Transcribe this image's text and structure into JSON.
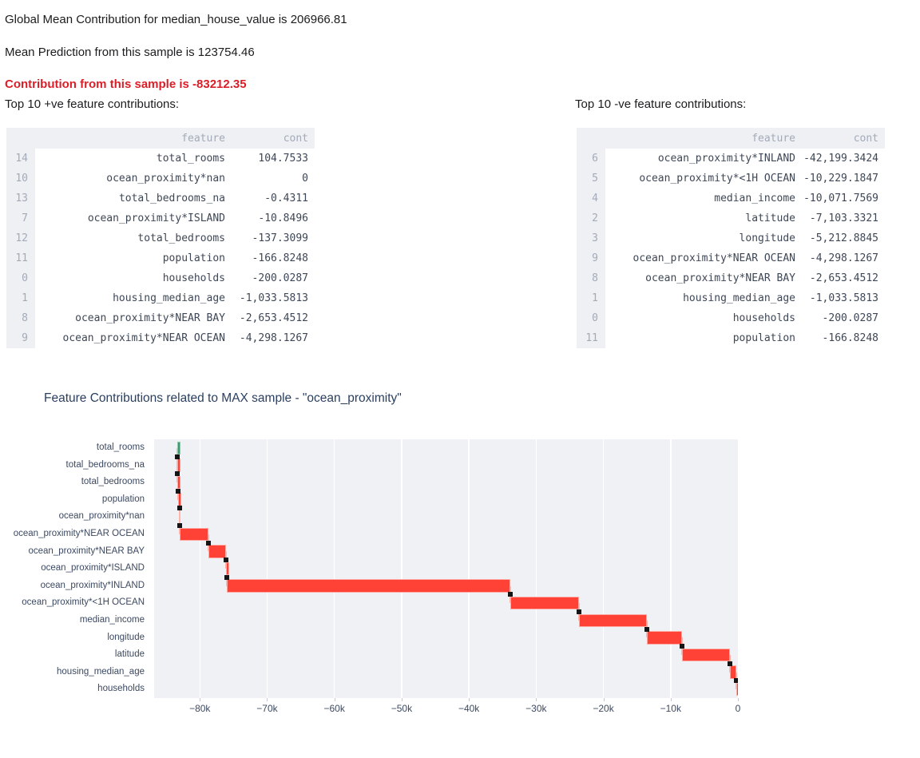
{
  "header": {
    "line1": "Global Mean Contribution for median_house_value is 206966.81",
    "line2": "Mean Prediction from this sample is 123754.46",
    "line3": "Contribution from this sample is -83212.35"
  },
  "tables": {
    "positive": {
      "title": "Top 10 +ve feature contributions:",
      "columns": [
        "feature",
        "cont"
      ],
      "rows": [
        {
          "index": "14",
          "feature": "total_rooms",
          "cont": "104.7533"
        },
        {
          "index": "10",
          "feature": "ocean_proximity*nan",
          "cont": "0"
        },
        {
          "index": "13",
          "feature": "total_bedrooms_na",
          "cont": "-0.4311"
        },
        {
          "index": "7",
          "feature": "ocean_proximity*ISLAND",
          "cont": "-10.8496"
        },
        {
          "index": "12",
          "feature": "total_bedrooms",
          "cont": "-137.3099"
        },
        {
          "index": "11",
          "feature": "population",
          "cont": "-166.8248"
        },
        {
          "index": "0",
          "feature": "households",
          "cont": "-200.0287"
        },
        {
          "index": "1",
          "feature": "housing_median_age",
          "cont": "-1,033.5813"
        },
        {
          "index": "8",
          "feature": "ocean_proximity*NEAR BAY",
          "cont": "-2,653.4512"
        },
        {
          "index": "9",
          "feature": "ocean_proximity*NEAR OCEAN",
          "cont": "-4,298.1267"
        }
      ]
    },
    "negative": {
      "title": "Top 10 -ve feature contributions:",
      "columns": [
        "feature",
        "cont"
      ],
      "rows": [
        {
          "index": "6",
          "feature": "ocean_proximity*INLAND",
          "cont": "-42,199.3424"
        },
        {
          "index": "5",
          "feature": "ocean_proximity*<1H OCEAN",
          "cont": "-10,229.1847"
        },
        {
          "index": "4",
          "feature": "median_income",
          "cont": "-10,071.7569"
        },
        {
          "index": "2",
          "feature": "latitude",
          "cont": "-7,103.3321"
        },
        {
          "index": "3",
          "feature": "longitude",
          "cont": "-5,212.8845"
        },
        {
          "index": "9",
          "feature": "ocean_proximity*NEAR OCEAN",
          "cont": "-4,298.1267"
        },
        {
          "index": "8",
          "feature": "ocean_proximity*NEAR BAY",
          "cont": "-2,653.4512"
        },
        {
          "index": "1",
          "feature": "housing_median_age",
          "cont": "-1,033.5813"
        },
        {
          "index": "0",
          "feature": "households",
          "cont": "-200.0287"
        },
        {
          "index": "11",
          "feature": "population",
          "cont": "-166.8248"
        }
      ]
    }
  },
  "chart_data": {
    "type": "bar",
    "variant": "horizontal-waterfall",
    "title": "Feature Contributions related to MAX sample - \"ocean_proximity\"",
    "categories": [
      "total_rooms",
      "total_bedrooms_na",
      "total_bedrooms",
      "population",
      "ocean_proximity*nan",
      "ocean_proximity*NEAR OCEAN",
      "ocean_proximity*NEAR BAY",
      "ocean_proximity*ISLAND",
      "ocean_proximity*INLAND",
      "ocean_proximity*<1H OCEAN",
      "median_income",
      "longitude",
      "latitude",
      "housing_median_age",
      "households"
    ],
    "values": [
      104.7533,
      -0.4311,
      -137.3099,
      -166.8248,
      0,
      -4298.1267,
      -2653.4512,
      -10.8496,
      -42199.3424,
      -10229.1847,
      -10071.7569,
      -5212.8845,
      -7103.3321,
      -1033.5813,
      -200.0287
    ],
    "total": -83212.35,
    "cumulative_end": 0,
    "xlabel": "",
    "ylabel": "",
    "xlim": [
      -86800,
      0
    ],
    "grid": "vertical-white",
    "legend": "none",
    "xticks": {
      "values": [
        -80000,
        -70000,
        -60000,
        -50000,
        -40000,
        -30000,
        -20000,
        -10000,
        0
      ],
      "labels": [
        "−80k",
        "−70k",
        "−60k",
        "−50k",
        "−40k",
        "−30k",
        "−20k",
        "−10k",
        "0"
      ]
    }
  },
  "colors": {
    "accent_red": "#da1e28",
    "positive_bar": "#3D9970",
    "negative_bar": "#FF4136",
    "bar_edge_negative": "#ffaba3",
    "bar_edge_positive": "#8fc7ab",
    "connector": "#ffb4ac",
    "marker": "#151515",
    "plot_bg": "#f0f1f4",
    "grid_line": "#ffffff",
    "chart_title_text": "#2a3f5f",
    "axis_text": "#3c4961",
    "table_text": "#3e4756",
    "table_muted": "#a3aab8",
    "table_band": "#eef0f3"
  }
}
